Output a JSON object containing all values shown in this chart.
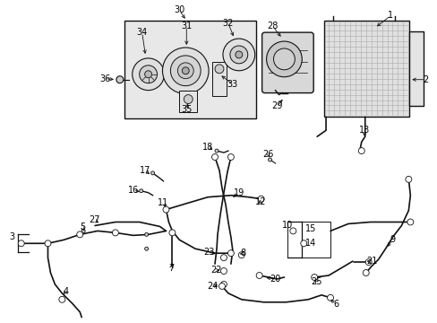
{
  "bg_color": "#ffffff",
  "line_color": "#111111",
  "gray_fill": "#d8d8d8",
  "box_fill": "#e8e8e8",
  "condenser_fill": "#c0c0c0"
}
